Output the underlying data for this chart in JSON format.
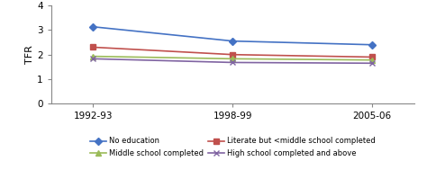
{
  "x_labels": [
    "1992-93",
    "1998-99",
    "2005-06"
  ],
  "x_positions": [
    0,
    1,
    2
  ],
  "series": [
    {
      "label": "No education",
      "values": [
        3.13,
        2.55,
        2.4
      ],
      "color": "#4472C4",
      "marker": "D",
      "linestyle": "-"
    },
    {
      "label": "Literate but <middle school completed",
      "values": [
        2.3,
        2.0,
        1.9
      ],
      "color": "#C0504D",
      "marker": "s",
      "linestyle": "-"
    },
    {
      "label": "Middle school completed",
      "values": [
        1.93,
        1.83,
        1.78
      ],
      "color": "#9BBB59",
      "marker": "^",
      "linestyle": "-"
    },
    {
      "label": "High school completed and above",
      "values": [
        1.83,
        1.68,
        1.65
      ],
      "color": "#8064A2",
      "marker": "x",
      "linestyle": "-"
    }
  ],
  "ylabel": "TFR",
  "ylim": [
    0,
    4
  ],
  "yticks": [
    0,
    1,
    2,
    3,
    4
  ],
  "legend_fontsize": 6.0,
  "axis_label_fontsize": 8,
  "tick_fontsize": 7.5,
  "marker_sizes": [
    4,
    4,
    5,
    5
  ],
  "linewidth": 1.2
}
